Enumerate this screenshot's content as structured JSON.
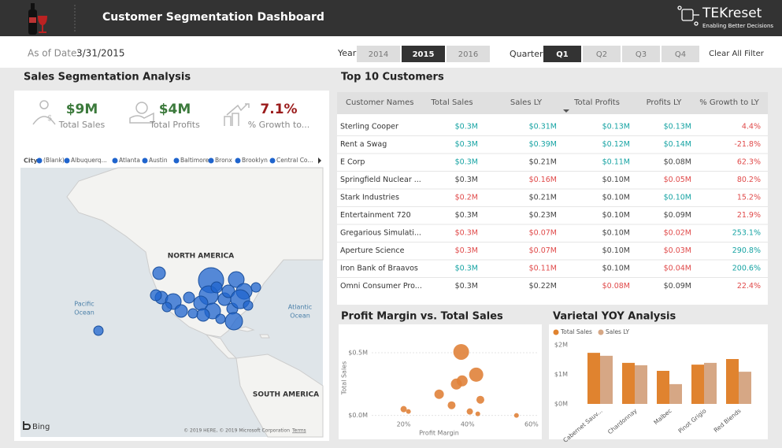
{
  "header": {
    "title": "Customer Segmentation Dashboard",
    "brand": "TEKreset",
    "tagline": "Enabling Better Decisions"
  },
  "filters": {
    "as_of_label": "As of Date:",
    "as_of_value": "3/31/2015",
    "year_label": "Year",
    "years": [
      "2014",
      "2015",
      "2016"
    ],
    "selected_year_index": 1,
    "quarter_label": "Quarter",
    "quarters": [
      "Q1",
      "Q2",
      "Q3",
      "Q4"
    ],
    "selected_quarter_index": 0,
    "clear": "Clear All Filter"
  },
  "segmentation": {
    "title": "Sales Segmentation Analysis",
    "kpis": [
      {
        "value": "$9M",
        "label": "Total Sales",
        "color": "#3c7a3c"
      },
      {
        "value": "$4M",
        "label": "Total Profits",
        "color": "#3c7a3c"
      },
      {
        "value": "7.1%",
        "label": "% Growth to...",
        "color": "#9b1c1c"
      }
    ],
    "legend_title": "City",
    "legend": [
      "(Blank)",
      "Albuquerq...",
      "Atlanta",
      "Austin",
      "Baltimore",
      "Bronx",
      "Brooklyn",
      "Central Co..."
    ],
    "legend_color": "#1f64cd",
    "map_labels": {
      "north_america": "NORTH AMERICA",
      "south_america": "SOUTH AMERICA",
      "pacific": [
        "Pacific",
        "Ocean"
      ],
      "atlantic": [
        "Atlantic",
        "Ocean"
      ]
    },
    "bing": "Bing",
    "attribution": "© 2019 HERE, © 2019 Microsoft Corporation",
    "terms": "Terms"
  },
  "customers": {
    "title": "Top 10 Customers",
    "columns": [
      "Customer Names",
      "Total Sales",
      "Sales LY",
      "Total Profits",
      "Profits LY",
      "% Growth to LY"
    ],
    "rows": [
      [
        "Sterling Cooper",
        "$0.3M",
        "$0.31M",
        "$0.13M",
        "$0.13M",
        "4.4%"
      ],
      [
        "Rent a Swag",
        "$0.3M",
        "$0.39M",
        "$0.12M",
        "$0.14M",
        "-21.8%"
      ],
      [
        "E Corp",
        "$0.3M",
        "$0.21M",
        "$0.11M",
        "$0.08M",
        "62.3%"
      ],
      [
        "Springfield Nuclear ...",
        "$0.3M",
        "$0.16M",
        "$0.10M",
        "$0.05M",
        "80.2%"
      ],
      [
        "Stark Industries",
        "$0.2M",
        "$0.21M",
        "$0.10M",
        "$0.10M",
        "15.2%"
      ],
      [
        "Entertainment 720",
        "$0.3M",
        "$0.23M",
        "$0.10M",
        "$0.09M",
        "21.9%"
      ],
      [
        "Gregarious Simulati...",
        "$0.3M",
        "$0.07M",
        "$0.10M",
        "$0.02M",
        "253.1%"
      ],
      [
        "Aperture Science",
        "$0.3M",
        "$0.07M",
        "$0.10M",
        "$0.03M",
        "290.8%"
      ],
      [
        "Iron Bank of Braavos",
        "$0.3M",
        "$0.11M",
        "$0.10M",
        "$0.04M",
        "200.6%"
      ],
      [
        "Omni Consumer Pro...",
        "$0.3M",
        "$0.22M",
        "$0.08M",
        "$0.09M",
        "22.4%"
      ]
    ],
    "colors": [
      [
        "#16a3a3",
        "#16a3a3",
        "#16a3a3",
        "#16a3a3",
        "#e04a4a"
      ],
      [
        "#16a3a3",
        "#16a3a3",
        "#16a3a3",
        "#16a3a3",
        "#e04a4a"
      ],
      [
        "#16a3a3",
        "#444444",
        "#16a3a3",
        "#444444",
        "#e04a4a"
      ],
      [
        "#444444",
        "#e04a4a",
        "#444444",
        "#e04a4a",
        "#e04a4a"
      ],
      [
        "#e04a4a",
        "#444444",
        "#444444",
        "#16a3a3",
        "#e04a4a"
      ],
      [
        "#444444",
        "#444444",
        "#444444",
        "#444444",
        "#e04a4a"
      ],
      [
        "#e04a4a",
        "#e04a4a",
        "#444444",
        "#e04a4a",
        "#16a3a3"
      ],
      [
        "#e04a4a",
        "#e04a4a",
        "#444444",
        "#e04a4a",
        "#16a3a3"
      ],
      [
        "#16a3a3",
        "#e04a4a",
        "#444444",
        "#e04a4a",
        "#16a3a3"
      ],
      [
        "#444444",
        "#444444",
        "#e04a4a",
        "#444444",
        "#e04a4a"
      ]
    ]
  },
  "scatter": {
    "type": "scatter",
    "title": "Profit Margin vs. Total Sales",
    "x_label": "Profit Margin",
    "y_label": "Total Sales",
    "x": [
      38,
      42.7,
      36.5,
      38.3,
      31.1,
      44,
      35,
      20,
      21.5,
      40.7,
      43.2,
      55.3
    ],
    "values": [
      506000,
      325000,
      250000,
      275000,
      169000,
      125000,
      81000,
      50000,
      31000,
      31000,
      12500,
      0
    ],
    "sizes": [
      10,
      9,
      7,
      7,
      6,
      5,
      5,
      4,
      3,
      4,
      3,
      3
    ],
    "color": "#e0823a",
    "xlim": [
      10,
      62
    ],
    "ylim": [
      -40000,
      600000
    ],
    "xticks": [
      {
        "value": 20,
        "label": "20%"
      },
      {
        "value": 40,
        "label": "40%"
      },
      {
        "value": 60,
        "label": "60%"
      }
    ],
    "yticks": [
      {
        "value": 0,
        "label": "$0.0M"
      },
      {
        "value": 500000,
        "label": "$0.5M"
      }
    ],
    "grid": true
  },
  "bars": {
    "type": "bar",
    "title": "Varietal YOY Analysis",
    "categories": [
      "Cabernet Sauv...",
      "Chardonnay",
      "Malbec",
      "Pinot Grigio",
      "Red Blends"
    ],
    "series": [
      {
        "name": "Total Sales",
        "color": "#e0832f",
        "values": [
          1730000,
          1390000,
          1120000,
          1330000,
          1520000
        ]
      },
      {
        "name": "Sales LY",
        "color": "#d6a785",
        "values": [
          1630000,
          1310000,
          670000,
          1390000,
          1090000
        ]
      }
    ],
    "ylim": [
      0,
      2200000
    ],
    "yticks": [
      {
        "value": 0,
        "label": "$0M"
      },
      {
        "value": 1000000,
        "label": "$1M"
      },
      {
        "value": 2000000,
        "label": "$2M"
      }
    ]
  }
}
